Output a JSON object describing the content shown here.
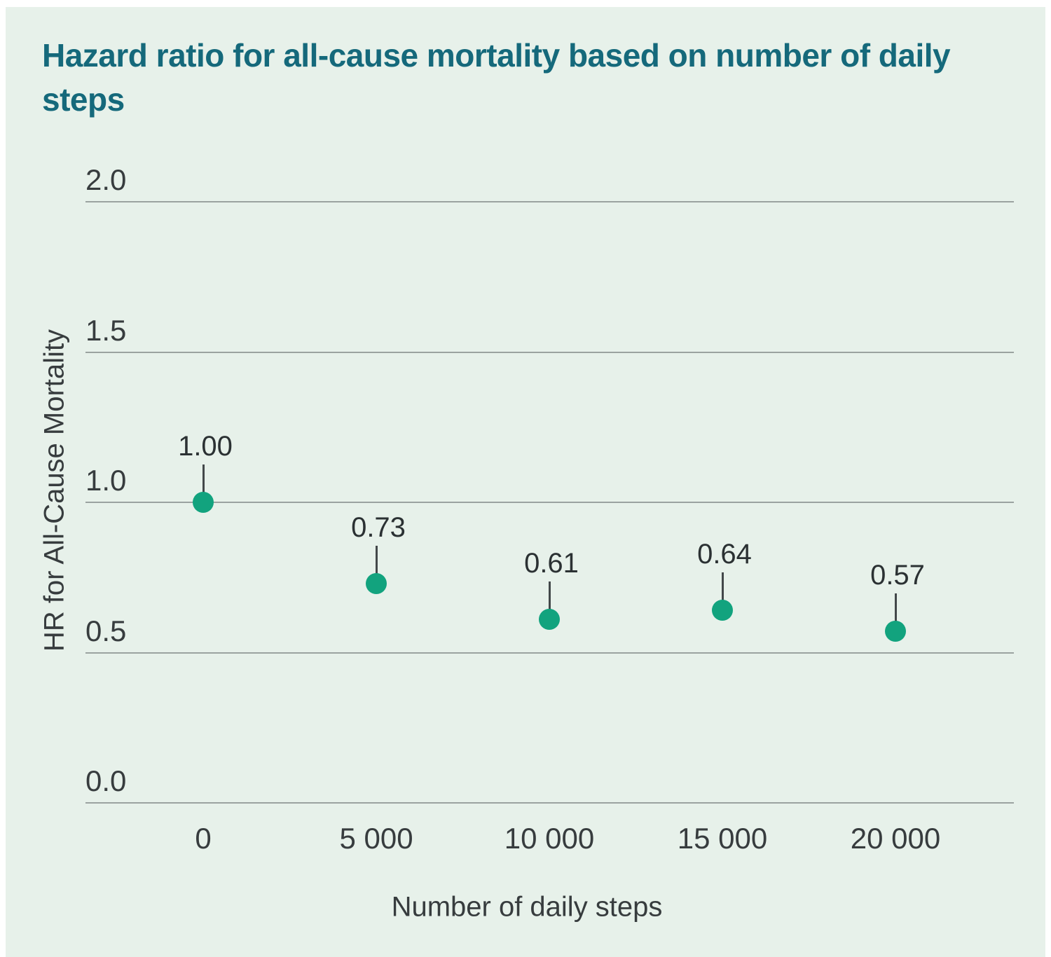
{
  "chart_data": {
    "type": "scatter",
    "title": "Hazard ratio for all-cause mortality based on number of daily steps",
    "xlabel": "Number of daily steps",
    "ylabel": "HR for All-Cause Mortality",
    "x": [
      0,
      5000,
      10000,
      15000,
      20000
    ],
    "x_tick_labels": [
      "0",
      "5 000",
      "10 000",
      "15 000",
      "20 000"
    ],
    "values": [
      1.0,
      0.73,
      0.61,
      0.64,
      0.57
    ],
    "point_labels": [
      "1.00",
      "0.73",
      "0.61",
      "0.64",
      "0.57"
    ],
    "y_ticks": [
      0.0,
      0.5,
      1.0,
      1.5,
      2.0
    ],
    "y_tick_labels": [
      "0.0",
      "0.5",
      "1.0",
      "1.5",
      "2.0"
    ],
    "ylim": [
      0.0,
      2.0
    ],
    "grid": "horizontal-only",
    "legend": "none",
    "point_label_connector": "vertical-line",
    "colors": {
      "panel_background": "#e7f1ea",
      "title_text": "#15697b",
      "point_fill": "#12a37e",
      "gridline": "#9ba3a0",
      "axis_text": "#373c3e",
      "point_label_text": "#2b3133",
      "connector_line": "#43484a"
    }
  }
}
